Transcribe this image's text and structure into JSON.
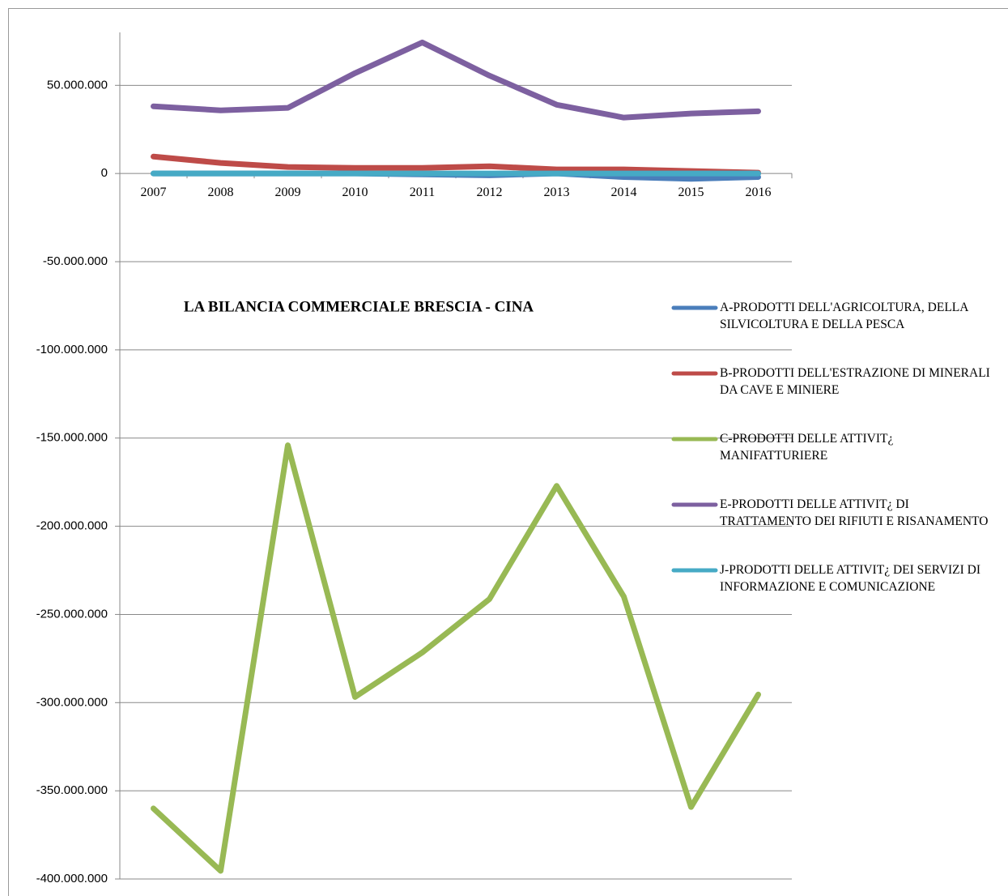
{
  "chart_data": {
    "type": "line",
    "title": "LA BILANCIA COMMERCIALE BRESCIA - CINA",
    "categories": [
      "2007",
      "2008",
      "2009",
      "2010",
      "2011",
      "2012",
      "2013",
      "2014",
      "2015",
      "2016"
    ],
    "series": [
      {
        "name": "A-PRODOTTI DELL'AGRICOLTURA, DELLA SILVICOLTURA E DELLA PESCA",
        "color": "#4a7ebb",
        "values": [
          0,
          0,
          0,
          0,
          -500000,
          -1000000,
          0,
          -2000000,
          -3000000,
          -2000000
        ]
      },
      {
        "name": "B-PRODOTTI DELL'ESTRAZIONE DI MINERALI DA CAVE E MINIERE",
        "color": "#be4b48",
        "values": [
          9600000,
          6000000,
          3700000,
          3200000,
          3200000,
          4100000,
          2300000,
          2300000,
          1400000,
          500000
        ]
      },
      {
        "name": "C-PRODOTTI DELLE ATTIVIT¿ MANIFATTURIERE",
        "color": "#98b954",
        "values": [
          -360000000,
          -395400000,
          -154100000,
          -296800000,
          -271600000,
          -241300000,
          -177100000,
          -239900000,
          -359200000,
          -295400000
        ]
      },
      {
        "name": "E-PRODOTTI DELLE ATTIVIT¿ DI TRATTAMENTO DEI RIFIUTI E RISANAMENTO",
        "color": "#7d60a0",
        "values": [
          38100000,
          35800000,
          37200000,
          56900000,
          74300000,
          55500000,
          39000000,
          31700000,
          34000000,
          35300000
        ]
      },
      {
        "name": "J-PRODOTTI DELLE ATTIVIT¿ DEI SERVIZI DI INFORMAZIONE E COMUNICAZIONE",
        "color": "#46aac5",
        "values": [
          0,
          0,
          0,
          0,
          0,
          0,
          0,
          0,
          0,
          0
        ]
      }
    ],
    "ylim": [
      -400000000,
      80000000
    ],
    "yticks": [
      {
        "value": -400000000,
        "label": "-400.000.000"
      },
      {
        "value": -350000000,
        "label": "-350.000.000"
      },
      {
        "value": -300000000,
        "label": "-300.000.000"
      },
      {
        "value": -250000000,
        "label": "-250.000.000"
      },
      {
        "value": -200000000,
        "label": "-200.000.000"
      },
      {
        "value": -150000000,
        "label": "-150.000.000"
      },
      {
        "value": -100000000,
        "label": "-100.000.000"
      },
      {
        "value": -50000000,
        "label": "-50.000.000"
      },
      0,
      {
        "value": 50000000,
        "label": "50.000.000"
      }
    ],
    "grid": true
  }
}
